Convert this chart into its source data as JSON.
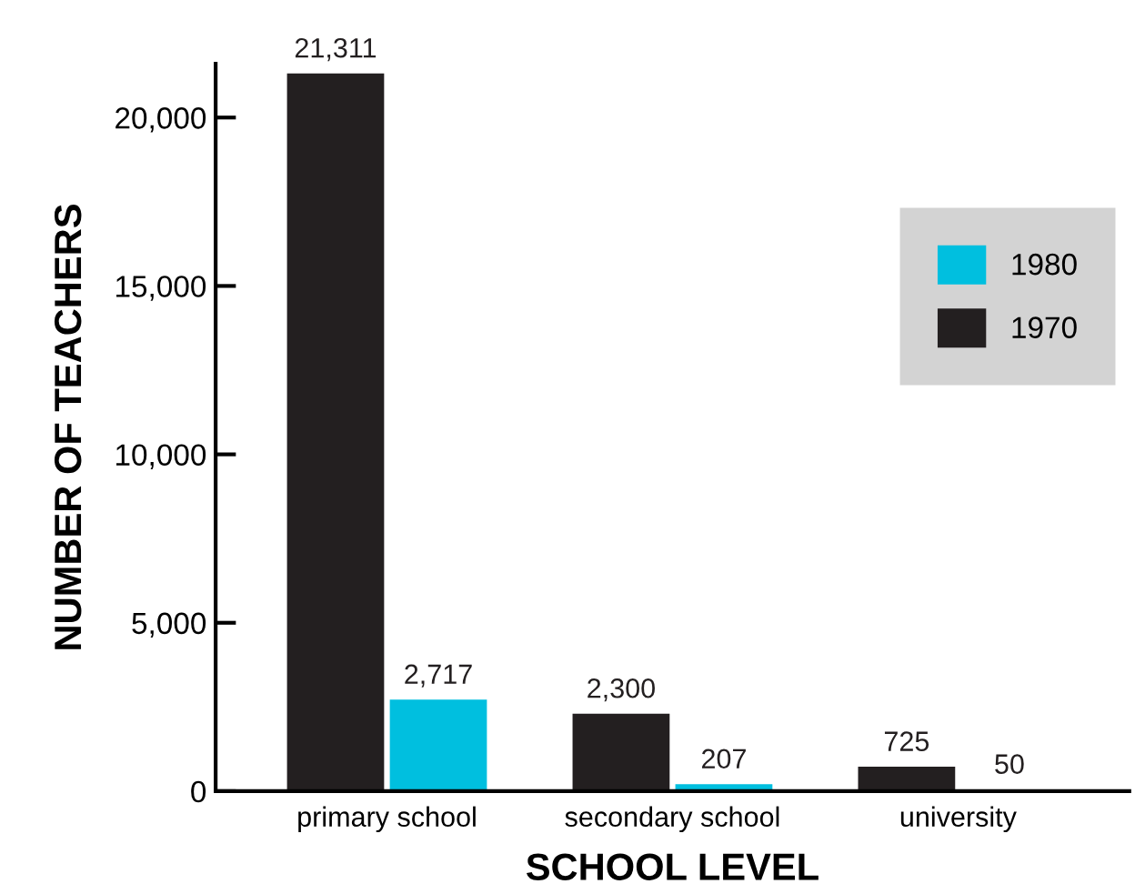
{
  "chart_data": {
    "type": "bar",
    "xlabel": "SCHOOL LEVEL",
    "ylabel": "NUMBER OF TEACHERS",
    "categories": [
      "primary school",
      "secondary school",
      "university"
    ],
    "series": [
      {
        "name": "1970",
        "color": "#231f20",
        "values": [
          21311,
          2300,
          725
        ],
        "value_labels": [
          "21,311",
          "2,300",
          "725"
        ]
      },
      {
        "name": "1980",
        "color": "#00bfdf",
        "values": [
          2717,
          207,
          50
        ],
        "value_labels": [
          "2,717",
          "207",
          "50"
        ]
      }
    ],
    "ylim": [
      0,
      21600
    ],
    "yticks": [
      0,
      {
        "value": 5000,
        "label": "5,000"
      },
      {
        "value": 10000,
        "label": "10,000"
      },
      {
        "value": 15000,
        "label": "15,000"
      },
      {
        "value": 20000,
        "label": "20,000"
      }
    ],
    "grid": false,
    "legend": "right"
  }
}
